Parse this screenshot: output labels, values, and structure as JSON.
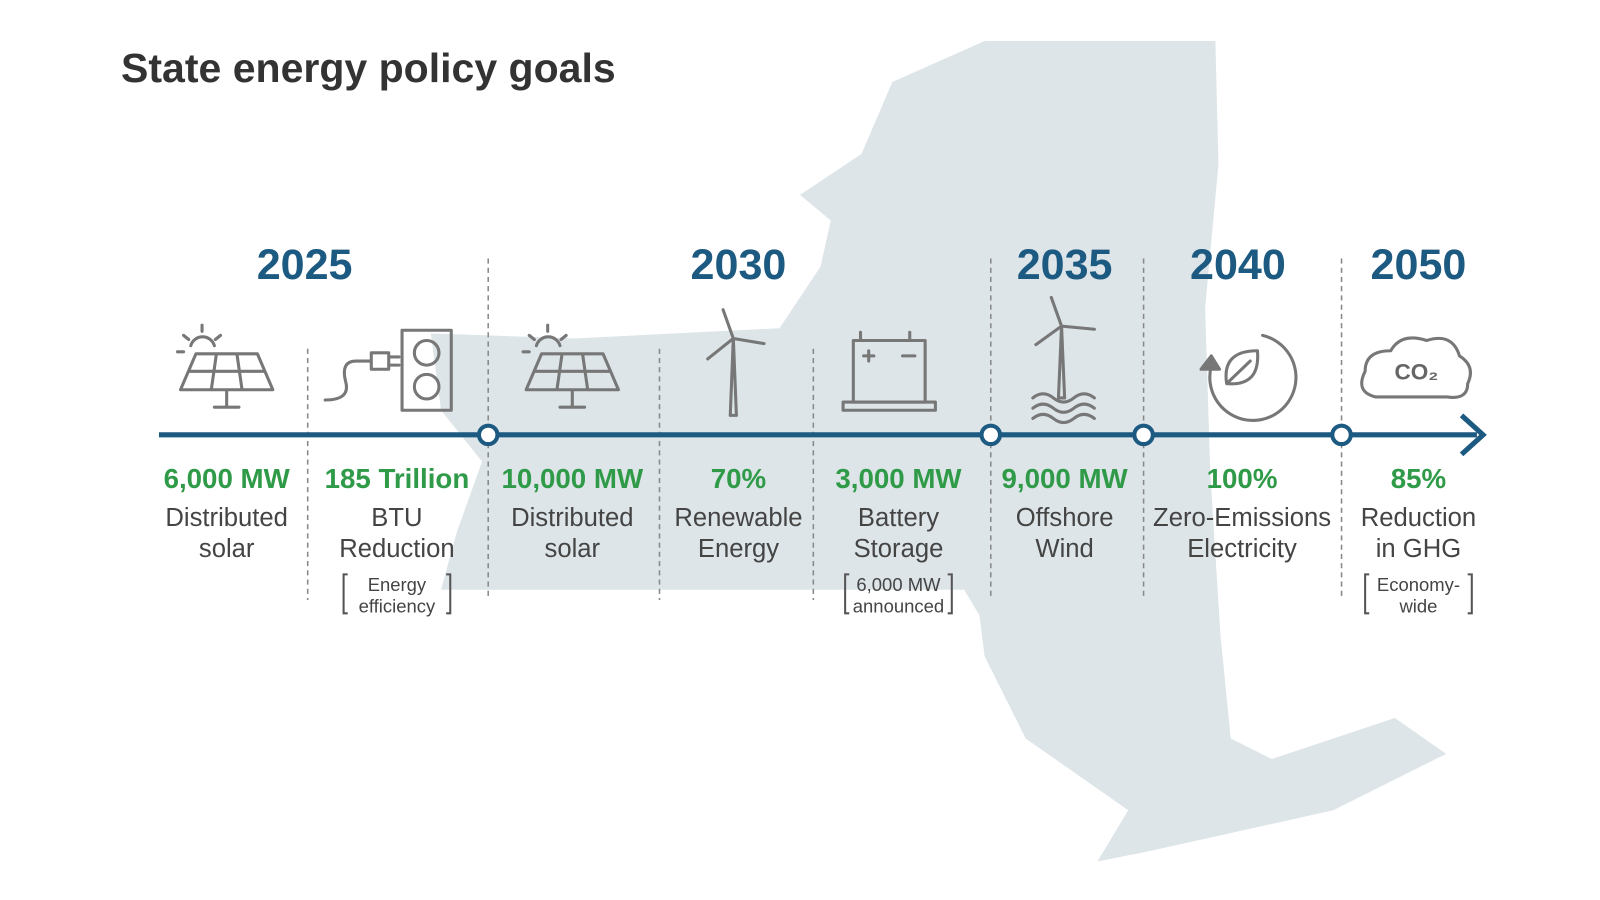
{
  "title": "State energy policy goals",
  "milestones": [
    {
      "year": "2025"
    },
    {
      "year": "2030"
    },
    {
      "year": "2035"
    },
    {
      "year": "2040"
    },
    {
      "year": "2050"
    }
  ],
  "goals": [
    {
      "value": "6,000 MW",
      "label": [
        "Distributed",
        "solar"
      ]
    },
    {
      "value": "185 Trillion",
      "label": [
        "BTU",
        "Reduction"
      ],
      "note": [
        "Energy",
        "efficiency"
      ]
    },
    {
      "value": "10,000 MW",
      "label": [
        "Distributed",
        "solar"
      ]
    },
    {
      "value": "70%",
      "label": [
        "Renewable",
        "Energy"
      ]
    },
    {
      "value": "3,000 MW",
      "label": [
        "Battery",
        "Storage"
      ],
      "note": [
        "6,000 MW",
        "announced"
      ]
    },
    {
      "value": "9,000 MW",
      "label": [
        "Offshore",
        "Wind"
      ]
    },
    {
      "value": "100%",
      "label": [
        "Zero-Emissions",
        "Electricity"
      ]
    },
    {
      "value": "85%",
      "label": [
        "Reduction",
        "in GHG"
      ],
      "note": [
        "Economy-",
        "wide"
      ]
    }
  ],
  "icons": {
    "co2": "CO₂"
  }
}
